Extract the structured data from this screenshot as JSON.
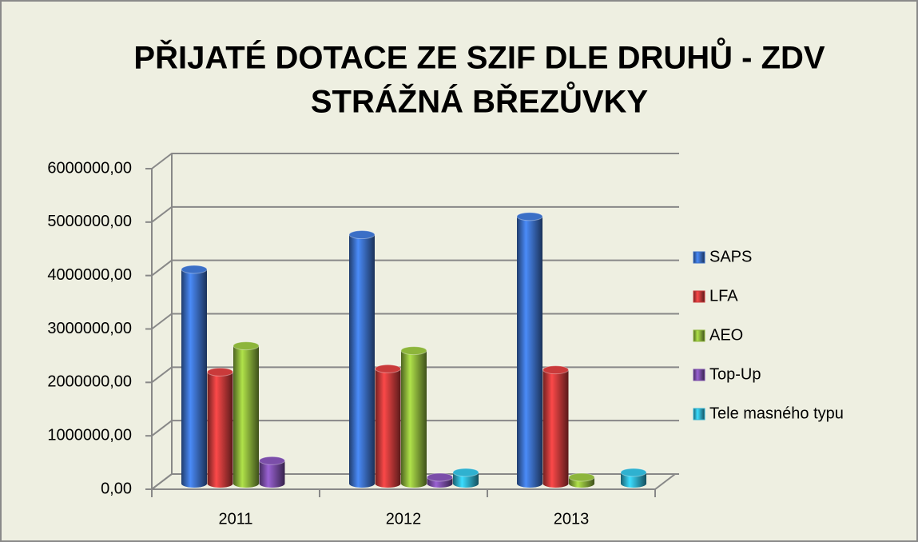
{
  "chart_data": {
    "type": "bar3d",
    "title": "PŘIJATÉ DOTACE ZE SZIF DLE DRUHŮ - ZDV STRÁŽNÁ BŘEZŮVKY",
    "categories": [
      "2011",
      "2012",
      "2013"
    ],
    "series": [
      {
        "name": "SAPS",
        "color": "#3b6fc6",
        "values": [
          4010000,
          4660000,
          5000000
        ]
      },
      {
        "name": "LFA",
        "color": "#c93a3a",
        "values": [
          2090000,
          2150000,
          2130000
        ]
      },
      {
        "name": "AEO",
        "color": "#8db53b",
        "values": [
          2580000,
          2490000,
          120000
        ]
      },
      {
        "name": "Top-Up",
        "color": "#7b4ea9",
        "values": [
          430000,
          120000,
          null
        ]
      },
      {
        "name": "Tele masného typu",
        "color": "#2fb1d0",
        "values": [
          null,
          210000,
          210000
        ]
      }
    ],
    "ylim": [
      0,
      6000000
    ],
    "yticks": [
      {
        "value": 0,
        "label": "0,00"
      },
      {
        "value": 1000000,
        "label": "1000000,00"
      },
      {
        "value": 2000000,
        "label": "2000000,00"
      },
      {
        "value": 3000000,
        "label": "3000000,00"
      },
      {
        "value": 4000000,
        "label": "4000000,00"
      },
      {
        "value": 5000000,
        "label": "5000000,00"
      },
      {
        "value": 6000000,
        "label": "6000000,00"
      }
    ],
    "grid": true,
    "legend": "right"
  }
}
